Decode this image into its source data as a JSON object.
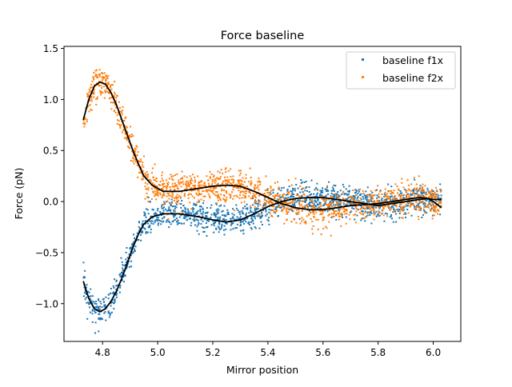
{
  "chart_data": {
    "type": "scatter",
    "title": "Force baseline",
    "xlabel": "Mirror position",
    "ylabel": "Force (pN)",
    "xlim": [
      4.66,
      6.1
    ],
    "ylim": [
      -1.37,
      1.52
    ],
    "x_ticks": [
      4.8,
      5.0,
      5.2,
      5.4,
      5.6,
      5.8,
      6.0
    ],
    "x_tick_labels": [
      "4.8",
      "5.0",
      "5.2",
      "5.4",
      "5.6",
      "5.8",
      "6.0"
    ],
    "y_ticks": [
      -1.0,
      -0.5,
      0.0,
      0.5,
      1.0,
      1.5
    ],
    "y_tick_labels": [
      "−1.0",
      "−0.5",
      "0.0",
      "0.5",
      "1.0",
      "1.5"
    ],
    "grid": false,
    "legend_position": "upper right",
    "x_range": [
      4.73,
      6.03
    ],
    "series": [
      {
        "name": "baseline f1x",
        "kind": "scatter",
        "color": "#1f77b4",
        "noise_sd": 0.07,
        "trend": [
          [
            4.73,
            -0.78
          ],
          [
            4.75,
            -0.95
          ],
          [
            4.77,
            -1.05
          ],
          [
            4.79,
            -1.08
          ],
          [
            4.81,
            -1.05
          ],
          [
            4.83,
            -0.98
          ],
          [
            4.85,
            -0.88
          ],
          [
            4.87,
            -0.75
          ],
          [
            4.89,
            -0.6
          ],
          [
            4.91,
            -0.45
          ],
          [
            4.93,
            -0.32
          ],
          [
            4.95,
            -0.22
          ],
          [
            4.98,
            -0.15
          ],
          [
            5.02,
            -0.12
          ],
          [
            5.08,
            -0.12
          ],
          [
            5.15,
            -0.15
          ],
          [
            5.2,
            -0.18
          ],
          [
            5.25,
            -0.2
          ],
          [
            5.3,
            -0.18
          ],
          [
            5.35,
            -0.12
          ],
          [
            5.4,
            -0.05
          ],
          [
            5.45,
            0.0
          ],
          [
            5.5,
            0.03
          ],
          [
            5.55,
            0.04
          ],
          [
            5.6,
            0.04
          ],
          [
            5.65,
            0.02
          ],
          [
            5.7,
            0.0
          ],
          [
            5.75,
            -0.02
          ],
          [
            5.8,
            -0.04
          ],
          [
            5.85,
            -0.02
          ],
          [
            5.9,
            0.0
          ],
          [
            5.95,
            0.02
          ],
          [
            5.98,
            0.03
          ],
          [
            6.0,
            0.02
          ],
          [
            6.03,
            0.02
          ]
        ]
      },
      {
        "name": "baseline f2x",
        "kind": "scatter",
        "color": "#ff7f0e",
        "noise_sd": 0.08,
        "trend": [
          [
            4.73,
            0.8
          ],
          [
            4.75,
            1.0
          ],
          [
            4.77,
            1.13
          ],
          [
            4.79,
            1.17
          ],
          [
            4.81,
            1.15
          ],
          [
            4.83,
            1.07
          ],
          [
            4.85,
            0.95
          ],
          [
            4.87,
            0.8
          ],
          [
            4.89,
            0.65
          ],
          [
            4.91,
            0.5
          ],
          [
            4.93,
            0.37
          ],
          [
            4.95,
            0.25
          ],
          [
            4.98,
            0.16
          ],
          [
            5.02,
            0.1
          ],
          [
            5.08,
            0.1
          ],
          [
            5.15,
            0.13
          ],
          [
            5.2,
            0.15
          ],
          [
            5.25,
            0.16
          ],
          [
            5.3,
            0.15
          ],
          [
            5.35,
            0.1
          ],
          [
            5.4,
            0.04
          ],
          [
            5.45,
            -0.02
          ],
          [
            5.5,
            -0.06
          ],
          [
            5.55,
            -0.08
          ],
          [
            5.6,
            -0.08
          ],
          [
            5.65,
            -0.06
          ],
          [
            5.7,
            -0.04
          ],
          [
            5.75,
            -0.03
          ],
          [
            5.8,
            -0.02
          ],
          [
            5.85,
            0.0
          ],
          [
            5.9,
            0.02
          ],
          [
            5.95,
            0.04
          ],
          [
            5.98,
            0.03
          ],
          [
            6.0,
            0.0
          ],
          [
            6.03,
            -0.06
          ]
        ]
      }
    ],
    "fit_line_color": "#000000"
  }
}
